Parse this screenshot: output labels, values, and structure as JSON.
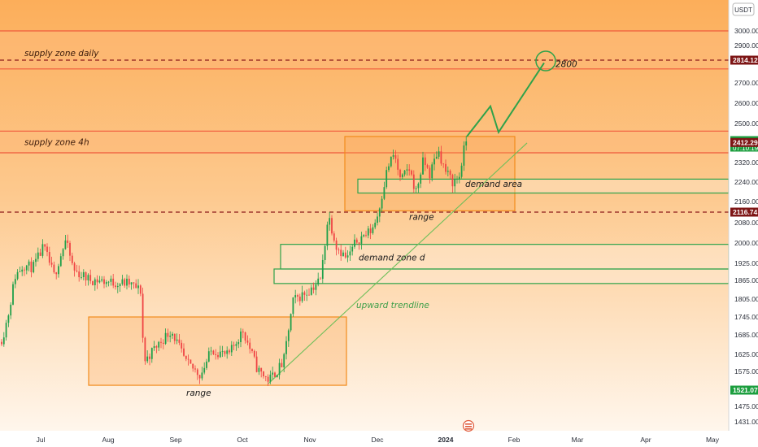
{
  "chart_data": {
    "type": "candlestick",
    "currency": "USDT",
    "ylim": [
      1420,
      3100
    ],
    "xlim": [
      0,
      932
    ],
    "y_ticks": [
      "3000.00",
      "2900.00",
      "2814.12",
      "2700.00",
      "2600.00",
      "2500.00",
      "2421.00",
      "2412.29",
      "2320.00",
      "2240.00",
      "2160.00",
      "2116.74",
      "2080.00",
      "2000.00",
      "1925.00",
      "1865.00",
      "1805.00",
      "1745.00",
      "1685.00",
      "1625.00",
      "1575.00",
      "1521.07",
      "1475.00",
      "1431.00"
    ],
    "x_ticks": [
      {
        "label": "Jul",
        "pos": 50
      },
      {
        "label": "Aug",
        "pos": 133
      },
      {
        "label": "Sep",
        "pos": 216
      },
      {
        "label": "Oct",
        "pos": 298
      },
      {
        "label": "Nov",
        "pos": 381
      },
      {
        "label": "Dec",
        "pos": 464
      },
      {
        "label": "2024",
        "pos": 548
      },
      {
        "label": "Feb",
        "pos": 632
      },
      {
        "label": "Mar",
        "pos": 710
      },
      {
        "label": "Apr",
        "pos": 794
      },
      {
        "label": "May",
        "pos": 876
      }
    ],
    "price_tags": [
      {
        "label": "2814.12",
        "value": 2814.12,
        "color": "#7d1515"
      },
      {
        "label": "2421.00",
        "sublabel": "07:10:19",
        "value": 2421,
        "color": "#1b9e3e"
      },
      {
        "label": "2412.29",
        "value": 2412.29,
        "color": "#7d1515"
      },
      {
        "label": "2116.74",
        "value": 2116.74,
        "color": "#7d1515"
      },
      {
        "label": "1521.07",
        "value": 1521.07,
        "color": "#1b9e3e"
      }
    ],
    "zones": [
      {
        "label": "supply zone daily",
        "top": 3000,
        "bottom": 2770,
        "color": "#f05a3c"
      },
      {
        "label": "supply zone 4h",
        "top": 2465,
        "bottom": 2365,
        "color": "#f05a3c"
      }
    ],
    "annotations": [
      {
        "label": "demand area",
        "color": "#1a1a1a"
      },
      {
        "label": "range",
        "color": "#1a1a1a"
      },
      {
        "label": "demand zone d",
        "color": "#1a1a1a"
      },
      {
        "label": "upward trendline",
        "color": "#3f9f4a"
      },
      {
        "label": "range",
        "color": "#1a1a1a"
      },
      {
        "label": "2800",
        "color": "#1a1a1a"
      }
    ],
    "trendline": {
      "from": [
        330,
        1540
      ],
      "to": [
        648,
        2410
      ]
    },
    "projection": [
      [
        574,
        2440
      ],
      [
        603,
        2585
      ],
      [
        613,
        2460
      ],
      [
        669,
        2800
      ]
    ],
    "target": {
      "x": 671,
      "value": 2810
    },
    "colors": {
      "up": "#1fa04a",
      "down": "#ef4444",
      "zone_fill": "#fdb97a",
      "range": "#f28c1c",
      "demand": "#2fa24a",
      "bg_top": "#fcb05e",
      "bg_bottom": "#fef5ea"
    }
  }
}
